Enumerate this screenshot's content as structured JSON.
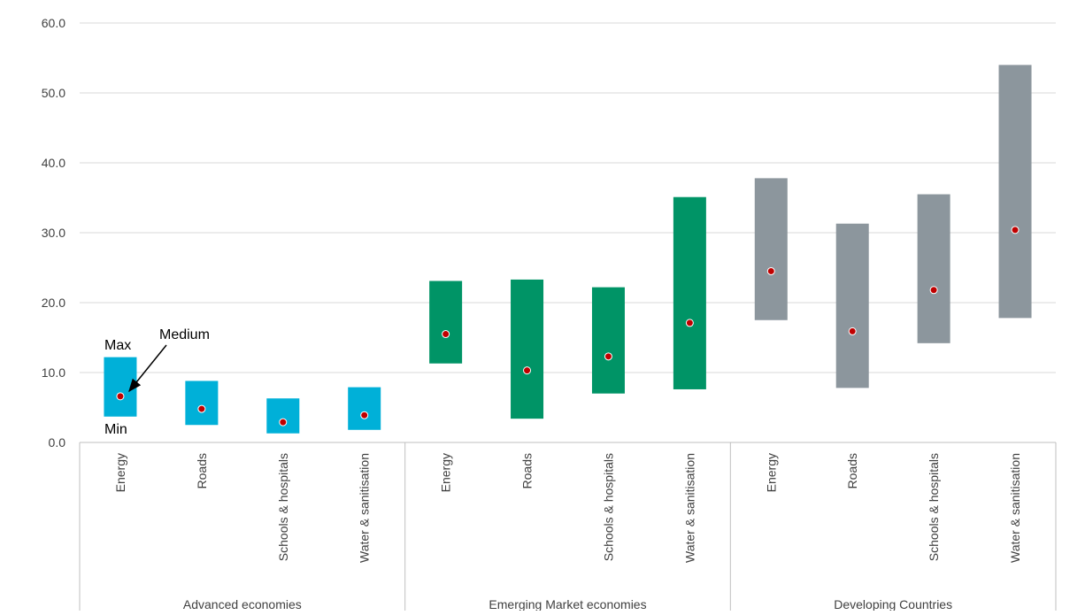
{
  "chart_data": {
    "type": "bar",
    "subtype": "floating-range",
    "title": "",
    "xlabel": "",
    "ylabel": "",
    "ylim": [
      0,
      60
    ],
    "yticks": [
      "0.0",
      "10.0",
      "20.0",
      "30.0",
      "40.0",
      "50.0",
      "60.0"
    ],
    "grid": true,
    "legend": "none",
    "groups": [
      {
        "name": "Advanced economies",
        "color": "#00b0d8",
        "items": [
          {
            "category": "Energy",
            "min": 3.7,
            "max": 12.2,
            "median": 6.6
          },
          {
            "category": "Roads",
            "min": 2.5,
            "max": 8.8,
            "median": 4.8
          },
          {
            "category": "Schools & hospitals",
            "min": 1.3,
            "max": 6.3,
            "median": 2.9
          },
          {
            "category": "Water & sanitisation",
            "min": 1.8,
            "max": 7.9,
            "median": 3.9
          }
        ]
      },
      {
        "name": "Emerging Market economies",
        "color": "#009466",
        "items": [
          {
            "category": "Energy",
            "min": 11.3,
            "max": 23.1,
            "median": 15.5
          },
          {
            "category": "Roads",
            "min": 3.4,
            "max": 23.3,
            "median": 10.3
          },
          {
            "category": "Schools & hospitals",
            "min": 7.0,
            "max": 22.2,
            "median": 12.3
          },
          {
            "category": "Water & sanitisation",
            "min": 7.6,
            "max": 35.1,
            "median": 17.1
          }
        ]
      },
      {
        "name": "Developing Countries",
        "color": "#8c969d",
        "items": [
          {
            "category": "Energy",
            "min": 17.5,
            "max": 37.8,
            "median": 24.5
          },
          {
            "category": "Roads",
            "min": 7.8,
            "max": 31.3,
            "median": 15.9
          },
          {
            "category": "Schools & hospitals",
            "min": 14.2,
            "max": 35.5,
            "median": 21.8
          },
          {
            "category": "Water & sanitisation",
            "min": 17.8,
            "max": 54.0,
            "median": 30.4
          }
        ]
      }
    ],
    "median_marker_color": "#c00000",
    "annotations": {
      "max": "Max",
      "min": "Min",
      "median": "Medium"
    }
  }
}
